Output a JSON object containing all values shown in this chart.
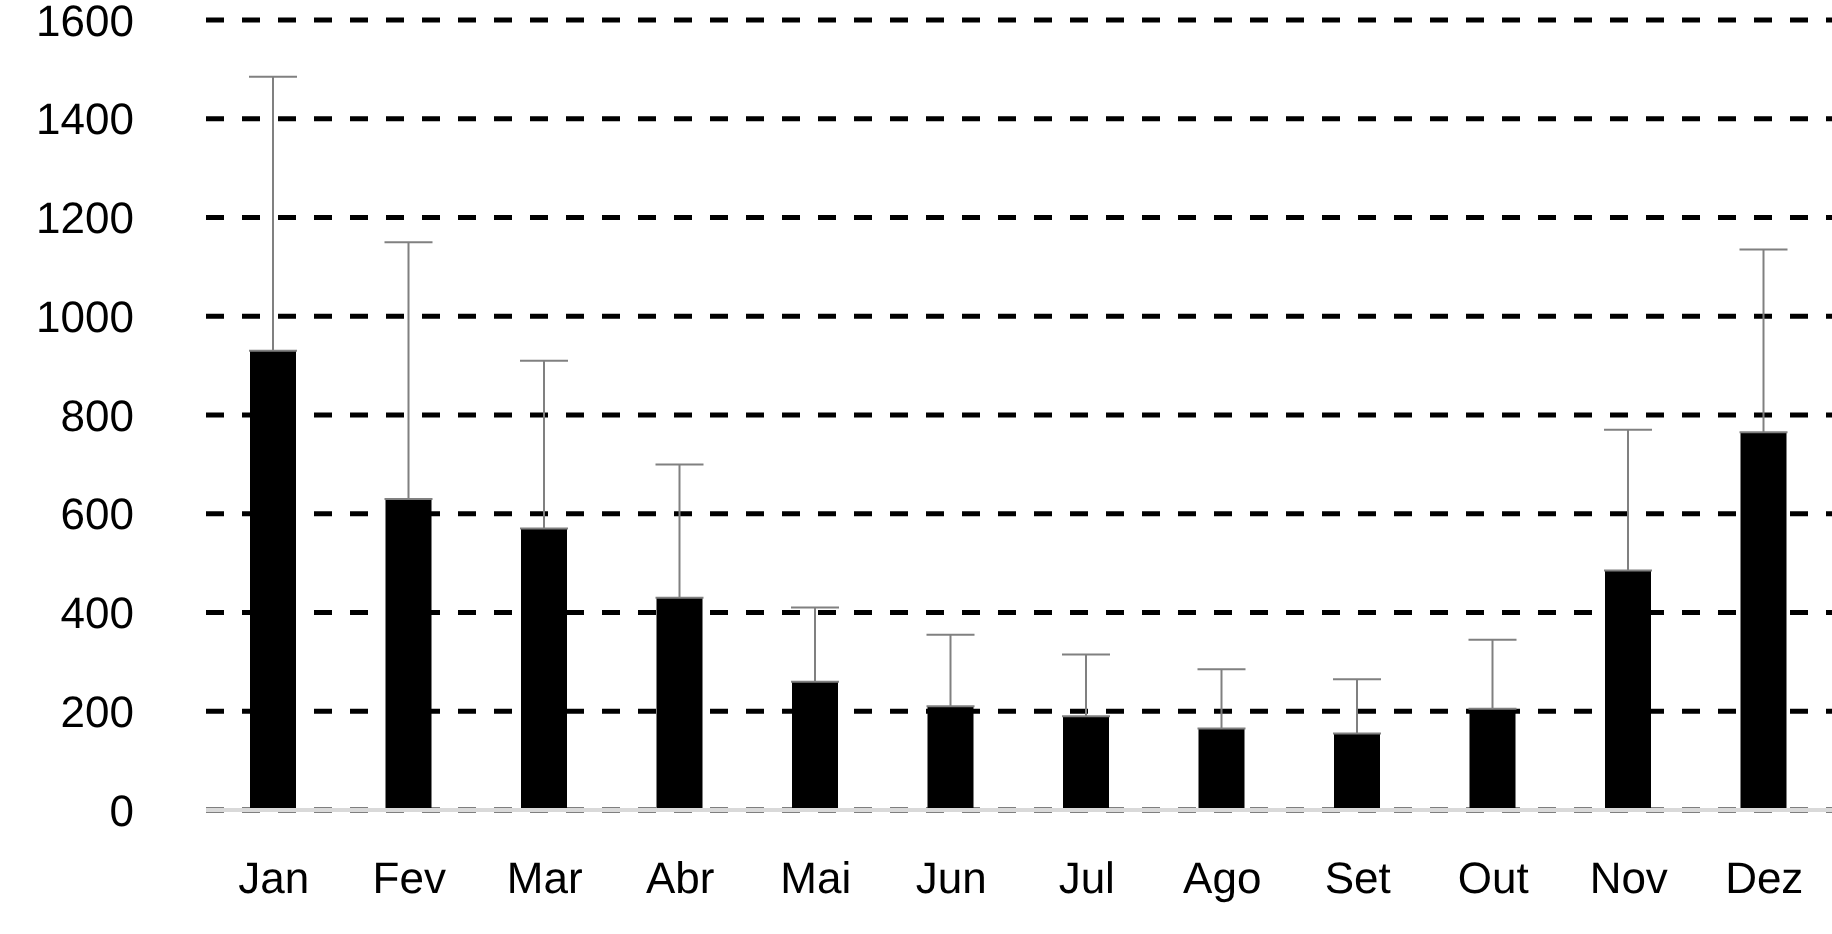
{
  "chart_data": {
    "type": "bar",
    "categories": [
      "Jan",
      "Fev",
      "Mar",
      "Abr",
      "Mai",
      "Jun",
      "Jul",
      "Ago",
      "Set",
      "Out",
      "Nov",
      "Dez"
    ],
    "values": [
      930,
      630,
      570,
      430,
      260,
      210,
      190,
      165,
      155,
      205,
      485,
      765
    ],
    "errors": [
      [
        930,
        1485
      ],
      [
        630,
        1150
      ],
      [
        570,
        910
      ],
      [
        430,
        700
      ],
      [
        260,
        410
      ],
      [
        210,
        355
      ],
      [
        190,
        315
      ],
      [
        165,
        285
      ],
      [
        155,
        265
      ],
      [
        205,
        345
      ],
      [
        485,
        770
      ],
      [
        765,
        1135
      ]
    ],
    "color": "#000000",
    "ylim": [
      0,
      1600
    ],
    "yticks": [
      0,
      200,
      400,
      600,
      800,
      1000,
      1200,
      1400,
      1600
    ],
    "grid": "y"
  }
}
